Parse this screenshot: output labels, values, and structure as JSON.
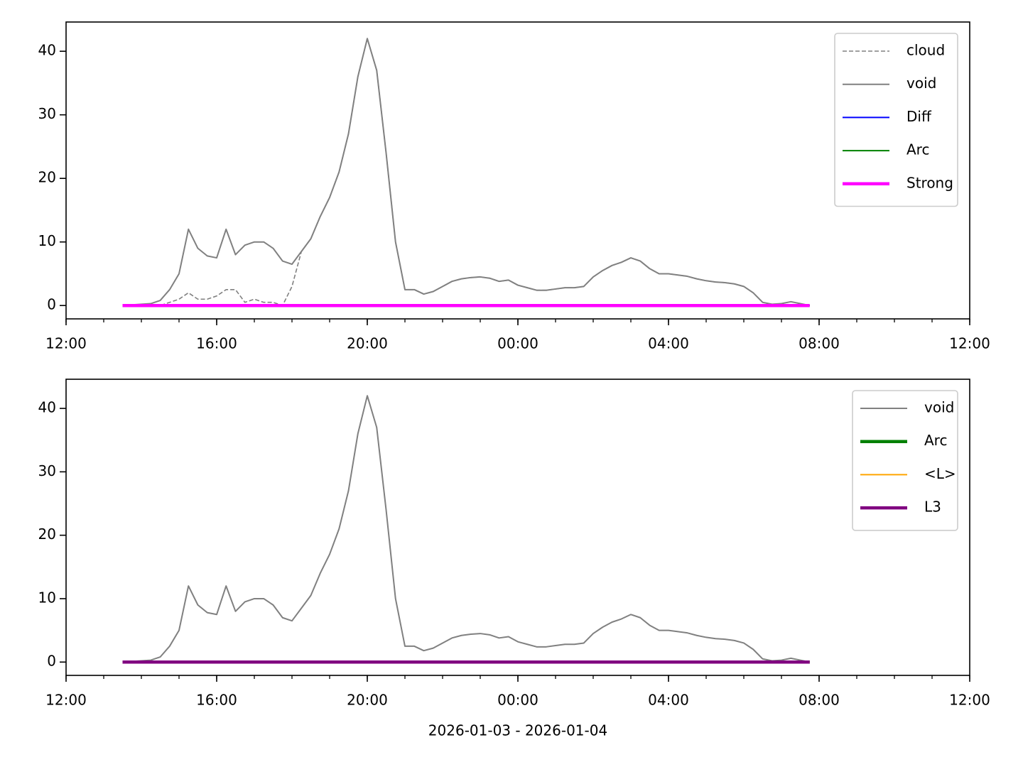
{
  "chart_data": [
    {
      "type": "line",
      "legend": "upper right",
      "xlim": [
        "2026-01-03 12:00",
        "2026-01-04 12:00"
      ],
      "xticks": [
        {
          "value": "2026-01-03 12:00",
          "label": "12:00"
        },
        {
          "value": "2026-01-03 16:00",
          "label": "16:00"
        },
        {
          "value": "2026-01-03 20:00",
          "label": "20:00"
        },
        {
          "value": "2026-01-04 00:00",
          "label": "00:00"
        },
        {
          "value": "2026-01-04 04:00",
          "label": "04:00"
        },
        {
          "value": "2026-01-04 08:00",
          "label": "08:00"
        },
        {
          "value": "2026-01-04 12:00",
          "label": "12:00"
        }
      ],
      "ylim": [
        -2.1,
        44.6
      ],
      "yticks": [
        0,
        10,
        20,
        30,
        40
      ],
      "x": [
        "2026-01-03 13:30",
        "2026-01-03 13:45",
        "2026-01-03 14:00",
        "2026-01-03 14:15",
        "2026-01-03 14:30",
        "2026-01-03 14:45",
        "2026-01-03 15:00",
        "2026-01-03 15:15",
        "2026-01-03 15:30",
        "2026-01-03 15:45",
        "2026-01-03 16:00",
        "2026-01-03 16:15",
        "2026-01-03 16:30",
        "2026-01-03 16:45",
        "2026-01-03 17:00",
        "2026-01-03 17:15",
        "2026-01-03 17:30",
        "2026-01-03 17:45",
        "2026-01-03 18:00",
        "2026-01-03 18:15",
        "2026-01-03 18:30",
        "2026-01-03 18:45",
        "2026-01-03 19:00",
        "2026-01-03 19:15",
        "2026-01-03 19:30",
        "2026-01-03 19:45",
        "2026-01-03 20:00",
        "2026-01-03 20:15",
        "2026-01-03 20:30",
        "2026-01-03 20:45",
        "2026-01-03 21:00",
        "2026-01-03 21:15",
        "2026-01-03 21:30",
        "2026-01-03 21:45",
        "2026-01-03 22:00",
        "2026-01-03 22:15",
        "2026-01-03 22:30",
        "2026-01-03 22:45",
        "2026-01-03 23:00",
        "2026-01-03 23:15",
        "2026-01-03 23:30",
        "2026-01-03 23:45",
        "2026-01-04 00:00",
        "2026-01-04 00:15",
        "2026-01-04 00:30",
        "2026-01-04 00:45",
        "2026-01-04 01:00",
        "2026-01-04 01:15",
        "2026-01-04 01:30",
        "2026-01-04 01:45",
        "2026-01-04 02:00",
        "2026-01-04 02:15",
        "2026-01-04 02:30",
        "2026-01-04 02:45",
        "2026-01-04 03:00",
        "2026-01-04 03:15",
        "2026-01-04 03:30",
        "2026-01-04 03:45",
        "2026-01-04 04:00",
        "2026-01-04 04:15",
        "2026-01-04 04:30",
        "2026-01-04 04:45",
        "2026-01-04 05:00",
        "2026-01-04 05:15",
        "2026-01-04 05:30",
        "2026-01-04 05:45",
        "2026-01-04 06:00",
        "2026-01-04 06:15",
        "2026-01-04 06:30",
        "2026-01-04 06:45",
        "2026-01-04 07:00",
        "2026-01-04 07:15",
        "2026-01-04 07:30",
        "2026-01-04 07:45"
      ],
      "series": [
        {
          "name": "cloud",
          "color": "#808080",
          "linestyle": "dashed",
          "linewidth": 1.6,
          "values": [
            0,
            0,
            0,
            0,
            0,
            0.5,
            1,
            2,
            1,
            1,
            1.5,
            2.5,
            2.5,
            0.5,
            1,
            0.5,
            0.5,
            0,
            3,
            8.5,
            10.5,
            14,
            17,
            21,
            27,
            36,
            42,
            37,
            24,
            10,
            2.5,
            2.5,
            1.8,
            2.2,
            3,
            3.8,
            4.2,
            4.4,
            4.5,
            4.3,
            3.8,
            4,
            3.2,
            2.8,
            2.4,
            2.4,
            2.6,
            2.8,
            2.8,
            3,
            4.5,
            5.5,
            6.3,
            6.8,
            7.5,
            7,
            5.8,
            5,
            5,
            4.8,
            4.6,
            4.2,
            3.9,
            3.7,
            3.6,
            3.4,
            3,
            2,
            0.5,
            0.2,
            0.3,
            0.6,
            0.3,
            0
          ]
        },
        {
          "name": "void",
          "color": "#808080",
          "linestyle": "solid",
          "linewidth": 2,
          "values": [
            0,
            0.1,
            0.2,
            0.3,
            0.8,
            2.5,
            5,
            12,
            9,
            7.8,
            7.5,
            12,
            8,
            9.5,
            10,
            10,
            9,
            7,
            6.5,
            8.5,
            10.5,
            14,
            17,
            21,
            27,
            36,
            42,
            37,
            24,
            10,
            2.5,
            2.5,
            1.8,
            2.2,
            3,
            3.8,
            4.2,
            4.4,
            4.5,
            4.3,
            3.8,
            4,
            3.2,
            2.8,
            2.4,
            2.4,
            2.6,
            2.8,
            2.8,
            3,
            4.5,
            5.5,
            6.3,
            6.8,
            7.5,
            7,
            5.8,
            5,
            5,
            4.8,
            4.6,
            4.2,
            3.9,
            3.7,
            3.6,
            3.4,
            3,
            2,
            0.5,
            0.2,
            0.3,
            0.6,
            0.3,
            0
          ]
        },
        {
          "name": "Diff",
          "color": "#0000ff",
          "linestyle": "solid",
          "linewidth": 2,
          "values": [
            0,
            0,
            0,
            0,
            0,
            0,
            0,
            0,
            0,
            0,
            0,
            0,
            0,
            0,
            0,
            0,
            0,
            0,
            0,
            0,
            0,
            0,
            0,
            0,
            0,
            0,
            0,
            0,
            0,
            0,
            0,
            0,
            0,
            0,
            0,
            0,
            0,
            0,
            0,
            0,
            0,
            0,
            0,
            0,
            0,
            0,
            0,
            0,
            0,
            0,
            0,
            0,
            0,
            0,
            0,
            0,
            0,
            0,
            0,
            0,
            0,
            0,
            0,
            0,
            0,
            0,
            0,
            0,
            0,
            0,
            0,
            0,
            0,
            0
          ]
        },
        {
          "name": "Arc",
          "color": "#008000",
          "linestyle": "solid",
          "linewidth": 2,
          "values": [
            0,
            0,
            0,
            0,
            0,
            0,
            0,
            0,
            0,
            0,
            0,
            0,
            0,
            0,
            0,
            0,
            0,
            0,
            0,
            0,
            0,
            0,
            0,
            0,
            0,
            0,
            0,
            0,
            0,
            0,
            0,
            0,
            0,
            0,
            0,
            0,
            0,
            0,
            0,
            0,
            0,
            0,
            0,
            0,
            0,
            0,
            0,
            0,
            0,
            0,
            0,
            0,
            0,
            0,
            0,
            0,
            0,
            0,
            0,
            0,
            0,
            0,
            0,
            0,
            0,
            0,
            0,
            0,
            0,
            0,
            0,
            0,
            0,
            0
          ]
        },
        {
          "name": "Strong",
          "color": "#ff00ff",
          "linestyle": "solid",
          "linewidth": 4.5,
          "values": [
            0,
            0,
            0,
            0,
            0,
            0,
            0,
            0,
            0,
            0,
            0,
            0,
            0,
            0,
            0,
            0,
            0,
            0,
            0,
            0,
            0,
            0,
            0,
            0,
            0,
            0,
            0,
            0,
            0,
            0,
            0,
            0,
            0,
            0,
            0,
            0,
            0,
            0,
            0,
            0,
            0,
            0,
            0,
            0,
            0,
            0,
            0,
            0,
            0,
            0,
            0,
            0,
            0,
            0,
            0,
            0,
            0,
            0,
            0,
            0,
            0,
            0,
            0,
            0,
            0,
            0,
            0,
            0,
            0,
            0,
            0,
            0,
            0,
            0
          ]
        }
      ]
    },
    {
      "type": "line",
      "legend": "upper right",
      "xlabel": "2026-01-03 - 2026-01-04",
      "xlim": [
        "2026-01-03 12:00",
        "2026-01-04 12:00"
      ],
      "xticks": [
        {
          "value": "2026-01-03 12:00",
          "label": "12:00"
        },
        {
          "value": "2026-01-03 16:00",
          "label": "16:00"
        },
        {
          "value": "2026-01-03 20:00",
          "label": "20:00"
        },
        {
          "value": "2026-01-04 00:00",
          "label": "00:00"
        },
        {
          "value": "2026-01-04 04:00",
          "label": "04:00"
        },
        {
          "value": "2026-01-04 08:00",
          "label": "08:00"
        },
        {
          "value": "2026-01-04 12:00",
          "label": "12:00"
        }
      ],
      "ylim": [
        -2.1,
        44.6
      ],
      "yticks": [
        0,
        10,
        20,
        30,
        40
      ],
      "x": [
        "2026-01-03 13:30",
        "2026-01-03 13:45",
        "2026-01-03 14:00",
        "2026-01-03 14:15",
        "2026-01-03 14:30",
        "2026-01-03 14:45",
        "2026-01-03 15:00",
        "2026-01-03 15:15",
        "2026-01-03 15:30",
        "2026-01-03 15:45",
        "2026-01-03 16:00",
        "2026-01-03 16:15",
        "2026-01-03 16:30",
        "2026-01-03 16:45",
        "2026-01-03 17:00",
        "2026-01-03 17:15",
        "2026-01-03 17:30",
        "2026-01-03 17:45",
        "2026-01-03 18:00",
        "2026-01-03 18:15",
        "2026-01-03 18:30",
        "2026-01-03 18:45",
        "2026-01-03 19:00",
        "2026-01-03 19:15",
        "2026-01-03 19:30",
        "2026-01-03 19:45",
        "2026-01-03 20:00",
        "2026-01-03 20:15",
        "2026-01-03 20:30",
        "2026-01-03 20:45",
        "2026-01-03 21:00",
        "2026-01-03 21:15",
        "2026-01-03 21:30",
        "2026-01-03 21:45",
        "2026-01-03 22:00",
        "2026-01-03 22:15",
        "2026-01-03 22:30",
        "2026-01-03 22:45",
        "2026-01-03 23:00",
        "2026-01-03 23:15",
        "2026-01-03 23:30",
        "2026-01-03 23:45",
        "2026-01-04 00:00",
        "2026-01-04 00:15",
        "2026-01-04 00:30",
        "2026-01-04 00:45",
        "2026-01-04 01:00",
        "2026-01-04 01:15",
        "2026-01-04 01:30",
        "2026-01-04 01:45",
        "2026-01-04 02:00",
        "2026-01-04 02:15",
        "2026-01-04 02:30",
        "2026-01-04 02:45",
        "2026-01-04 03:00",
        "2026-01-04 03:15",
        "2026-01-04 03:30",
        "2026-01-04 03:45",
        "2026-01-04 04:00",
        "2026-01-04 04:15",
        "2026-01-04 04:30",
        "2026-01-04 04:45",
        "2026-01-04 05:00",
        "2026-01-04 05:15",
        "2026-01-04 05:30",
        "2026-01-04 05:45",
        "2026-01-04 06:00",
        "2026-01-04 06:15",
        "2026-01-04 06:30",
        "2026-01-04 06:45",
        "2026-01-04 07:00",
        "2026-01-04 07:15",
        "2026-01-04 07:30",
        "2026-01-04 07:45"
      ],
      "series": [
        {
          "name": "void",
          "color": "#808080",
          "linestyle": "solid",
          "linewidth": 2,
          "values": [
            0,
            0.1,
            0.2,
            0.3,
            0.8,
            2.5,
            5,
            12,
            9,
            7.8,
            7.5,
            12,
            8,
            9.5,
            10,
            10,
            9,
            7,
            6.5,
            8.5,
            10.5,
            14,
            17,
            21,
            27,
            36,
            42,
            37,
            24,
            10,
            2.5,
            2.5,
            1.8,
            2.2,
            3,
            3.8,
            4.2,
            4.4,
            4.5,
            4.3,
            3.8,
            4,
            3.2,
            2.8,
            2.4,
            2.4,
            2.6,
            2.8,
            2.8,
            3,
            4.5,
            5.5,
            6.3,
            6.8,
            7.5,
            7,
            5.8,
            5,
            5,
            4.8,
            4.6,
            4.2,
            3.9,
            3.7,
            3.6,
            3.4,
            3,
            2,
            0.5,
            0.2,
            0.3,
            0.6,
            0.3,
            0
          ]
        },
        {
          "name": "Arc",
          "color": "#008000",
          "linestyle": "solid",
          "linewidth": 4.5,
          "values": [
            0,
            0,
            0,
            0,
            0,
            0,
            0,
            0,
            0,
            0,
            0,
            0,
            0,
            0,
            0,
            0,
            0,
            0,
            0,
            0,
            0,
            0,
            0,
            0,
            0,
            0,
            0,
            0,
            0,
            0,
            0,
            0,
            0,
            0,
            0,
            0,
            0,
            0,
            0,
            0,
            0,
            0,
            0,
            0,
            0,
            0,
            0,
            0,
            0,
            0,
            0,
            0,
            0,
            0,
            0,
            0,
            0,
            0,
            0,
            0,
            0,
            0,
            0,
            0,
            0,
            0,
            0,
            0,
            0,
            0,
            0,
            0,
            0,
            0
          ]
        },
        {
          "name": "<L>",
          "color": "#ffa500",
          "linestyle": "solid",
          "linewidth": 2,
          "values": [
            0,
            0,
            0,
            0,
            0,
            0,
            0,
            0,
            0,
            0,
            0,
            0,
            0,
            0,
            0,
            0,
            0,
            0,
            0,
            0,
            0,
            0,
            0,
            0,
            0,
            0,
            0,
            0,
            0,
            0,
            0,
            0,
            0,
            0,
            0,
            0,
            0,
            0,
            0,
            0,
            0,
            0,
            0,
            0,
            0,
            0,
            0,
            0,
            0,
            0,
            0,
            0,
            0,
            0,
            0,
            0,
            0,
            0,
            0,
            0,
            0,
            0,
            0,
            0,
            0,
            0,
            0,
            0,
            0,
            0,
            0,
            0,
            0,
            0
          ]
        },
        {
          "name": "L3",
          "color": "#800080",
          "linestyle": "solid",
          "linewidth": 4.5,
          "values": [
            0,
            0,
            0,
            0,
            0,
            0,
            0,
            0,
            0,
            0,
            0,
            0,
            0,
            0,
            0,
            0,
            0,
            0,
            0,
            0,
            0,
            0,
            0,
            0,
            0,
            0,
            0,
            0,
            0,
            0,
            0,
            0,
            0,
            0,
            0,
            0,
            0,
            0,
            0,
            0,
            0,
            0,
            0,
            0,
            0,
            0,
            0,
            0,
            0,
            0,
            0,
            0,
            0,
            0,
            0,
            0,
            0,
            0,
            0,
            0,
            0,
            0,
            0,
            0,
            0,
            0,
            0,
            0,
            0,
            0,
            0,
            0,
            0,
            0
          ]
        }
      ]
    }
  ]
}
